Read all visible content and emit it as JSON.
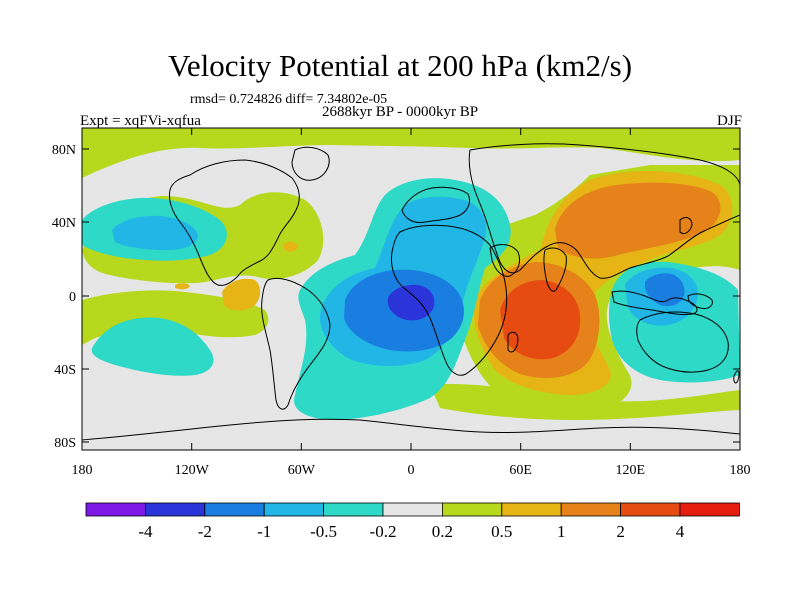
{
  "header": {
    "title": "Velocity Potential at 200 hPa (km2/s)",
    "stats": "rmsd= 0.724826 diff= 7.34802e-05",
    "period": "2688kyr BP - 0000kyr BP",
    "experiment": "Expt = xqFVi-xqfua",
    "season": "DJF"
  },
  "map": {
    "x_ticks": [
      "180",
      "120W",
      "60W",
      "0",
      "60E",
      "120E",
      "180"
    ],
    "y_ticks": [
      "80N",
      "40N",
      "0",
      "40S",
      "80S"
    ]
  },
  "colorbar": {
    "labels": [
      "-4",
      "-2",
      "-1",
      "-0.5",
      "-0.2",
      "0.2",
      "0.5",
      "1",
      "2",
      "4"
    ],
    "colors": [
      "#7f1ae6",
      "#2a34d8",
      "#1a7ee0",
      "#22b6e6",
      "#2ed9c8",
      "#e6e6e6",
      "#b8d81e",
      "#e6b414",
      "#e6821a",
      "#e64c12",
      "#e61e12"
    ]
  },
  "chart_data": {
    "type": "heatmap",
    "title": "Velocity Potential at 200 hPa (km2/s)",
    "units": "km2/s",
    "level_bounds": [
      -4,
      -2,
      -1,
      -0.5,
      -0.2,
      0.2,
      0.5,
      1,
      2,
      4
    ],
    "xlim": [
      -180,
      180
    ],
    "ylim": [
      -90,
      90
    ],
    "features": [
      {
        "name": "central-atlantic-africa-minimum",
        "lon": -5,
        "lat": -5,
        "min_level": "< -4"
      },
      {
        "name": "indian-ocean-maximum",
        "lon": 55,
        "lat": -15,
        "max_level": "2 to 4"
      },
      {
        "name": "east-asia-pacific-maximum",
        "lon": 110,
        "lat": 35,
        "max_level": "1 to 2"
      },
      {
        "name": "maritime-continent-minimum",
        "lon": 140,
        "lat": 0,
        "min_level": "-1 to -0.5"
      },
      {
        "name": "north-pacific-minimum",
        "lon": -150,
        "lat": 30,
        "min_level": "-1 to -0.5"
      }
    ]
  }
}
